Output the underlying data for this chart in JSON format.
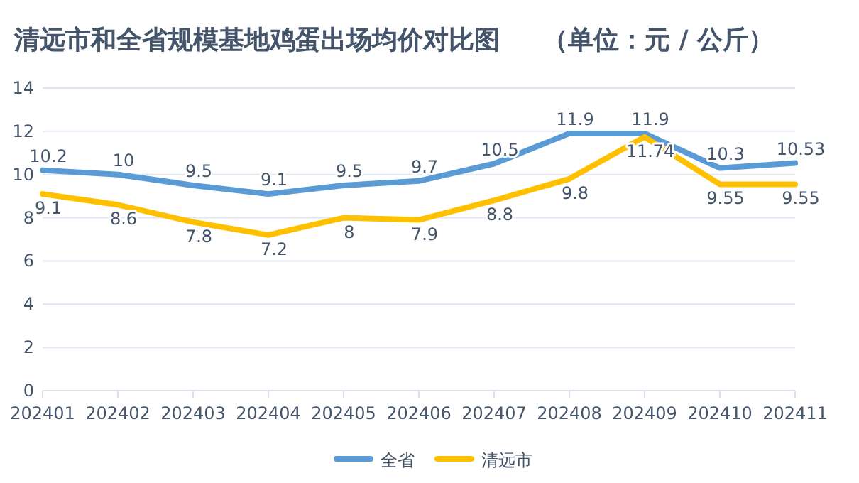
{
  "chart_data": {
    "type": "line",
    "title": "清远市和全省规模基地鸡蛋出场均价对比图",
    "subtitle": "（单位：元 / 公斤）",
    "categories": [
      "202401",
      "202402",
      "202403",
      "202404",
      "202405",
      "202406",
      "202407",
      "202408",
      "202409",
      "202410",
      "202411"
    ],
    "series": [
      {
        "name": "全省",
        "color": "#5b9bd5",
        "values": [
          10.2,
          10,
          9.5,
          9.1,
          9.5,
          9.7,
          10.5,
          11.9,
          11.9,
          10.3,
          10.53
        ]
      },
      {
        "name": "清远市",
        "color": "#ffc000",
        "values": [
          9.1,
          8.6,
          7.8,
          7.2,
          8,
          7.9,
          8.8,
          9.8,
          11.74,
          9.55,
          9.55
        ]
      }
    ],
    "ylim": [
      0,
      14
    ],
    "yticks": [
      0,
      2,
      4,
      6,
      8,
      10,
      12,
      14
    ],
    "grid": "y",
    "legend": "bottom",
    "data_labels": true,
    "marker": "none",
    "line_style": "solid"
  }
}
